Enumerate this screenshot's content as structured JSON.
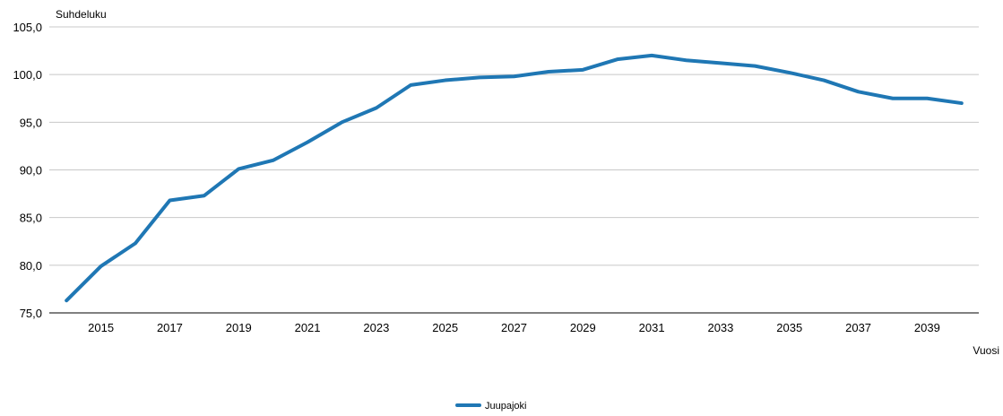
{
  "chart_data": {
    "type": "line",
    "ylabel": "Suhdeluku",
    "xlabel": "Vuosi",
    "ylim": [
      75,
      105
    ],
    "xlim": [
      2013.5,
      2040.5
    ],
    "yticks": [
      "75,0",
      "80,0",
      "85,0",
      "90,0",
      "95,0",
      "100,0",
      "105,0"
    ],
    "xticks": [
      "2015",
      "2017",
      "2019",
      "2021",
      "2023",
      "2025",
      "2027",
      "2029",
      "2031",
      "2033",
      "2035",
      "2037",
      "2039"
    ],
    "grid": true,
    "legend_position": "bottom",
    "x": [
      2014,
      2015,
      2016,
      2017,
      2018,
      2019,
      2020,
      2021,
      2022,
      2023,
      2024,
      2025,
      2026,
      2027,
      2028,
      2029,
      2030,
      2031,
      2032,
      2033,
      2034,
      2035,
      2036,
      2037,
      2038,
      2039,
      2040
    ],
    "series": [
      {
        "name": "Juupajoki",
        "color": "#1f77b4",
        "values": [
          76.3,
          79.9,
          82.3,
          86.8,
          87.3,
          90.1,
          91.0,
          92.9,
          95.0,
          96.5,
          98.9,
          99.4,
          99.7,
          99.8,
          100.3,
          100.5,
          101.6,
          102.0,
          101.5,
          101.2,
          100.9,
          100.2,
          99.4,
          98.2,
          97.5,
          97.5,
          97.0
        ]
      }
    ]
  }
}
